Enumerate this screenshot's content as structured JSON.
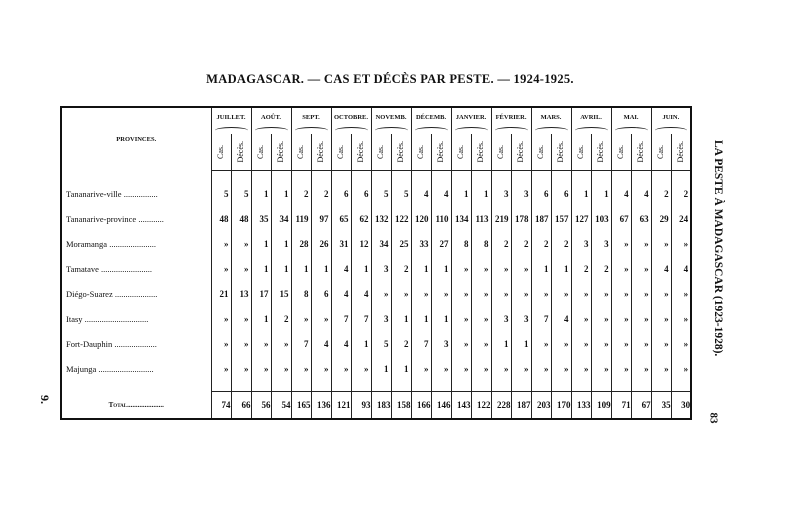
{
  "title": "MADAGASCAR. — CAS ET DÉCÈS PAR PESTE. — 1924-1925.",
  "running_head": "LA PESTE À MADAGASCAR (1923-1928).",
  "page_number": "83",
  "folio_mark": "9.",
  "table": {
    "province_header": "PROVINCES.",
    "months": [
      "JUILLET.",
      "AOÛT.",
      "SEPT.",
      "OCTOBRE.",
      "NOVEMB.",
      "DÉCEMB.",
      "JANVIER.",
      "FÉVRIER.",
      "MARS.",
      "AVRIL.",
      "MAI.",
      "JUIN."
    ],
    "sub_headers": [
      "Cas.",
      "Décès."
    ],
    "rows": [
      {
        "province": "Tananarive-ville ................",
        "values": [
          "5",
          "5",
          "1",
          "1",
          "2",
          "2",
          "6",
          "6",
          "5",
          "5",
          "4",
          "4",
          "1",
          "1",
          "3",
          "3",
          "6",
          "6",
          "1",
          "1",
          "4",
          "4",
          "2",
          "2"
        ]
      },
      {
        "province": "Tananarive-province ............",
        "values": [
          "48",
          "48",
          "35",
          "34",
          "119",
          "97",
          "65",
          "62",
          "132",
          "122",
          "120",
          "110",
          "134",
          "113",
          "219",
          "178",
          "187",
          "157",
          "127",
          "103",
          "67",
          "63",
          "29",
          "24"
        ]
      },
      {
        "province": "Moramanga ......................",
        "values": [
          "»",
          "»",
          "1",
          "1",
          "28",
          "26",
          "31",
          "12",
          "34",
          "25",
          "33",
          "27",
          "8",
          "8",
          "2",
          "2",
          "2",
          "2",
          "3",
          "3",
          "»",
          "»",
          "»",
          "»"
        ]
      },
      {
        "province": "Tamatave ........................",
        "values": [
          "»",
          "»",
          "1",
          "1",
          "1",
          "1",
          "4",
          "1",
          "3",
          "2",
          "1",
          "1",
          "»",
          "»",
          "»",
          "»",
          "1",
          "1",
          "2",
          "2",
          "»",
          "»",
          "4",
          "4"
        ]
      },
      {
        "province": "Diégo-Suarez ....................",
        "values": [
          "21",
          "13",
          "17",
          "15",
          "8",
          "6",
          "4",
          "4",
          "»",
          "»",
          "»",
          "»",
          "»",
          "»",
          "»",
          "»",
          "»",
          "»",
          "»",
          "»",
          "»",
          "»",
          "»",
          "»"
        ]
      },
      {
        "province": "Itasy ..............................",
        "values": [
          "»",
          "»",
          "1",
          "2",
          "»",
          "»",
          "7",
          "7",
          "3",
          "1",
          "1",
          "1",
          "»",
          "»",
          "3",
          "3",
          "7",
          "4",
          "»",
          "»",
          "»",
          "»",
          "»",
          "»"
        ]
      },
      {
        "province": "Fort-Dauphin ....................",
        "values": [
          "»",
          "»",
          "»",
          "»",
          "7",
          "4",
          "4",
          "1",
          "5",
          "2",
          "7",
          "3",
          "»",
          "»",
          "1",
          "1",
          "»",
          "»",
          "»",
          "»",
          "»",
          "»",
          "»",
          "»"
        ]
      },
      {
        "province": "Majunga ..........................",
        "values": [
          "»",
          "»",
          "»",
          "»",
          "»",
          "»",
          "»",
          "»",
          "1",
          "1",
          "»",
          "»",
          "»",
          "»",
          "»",
          "»",
          "»",
          "»",
          "»",
          "»",
          "»",
          "»",
          "»",
          "»"
        ]
      }
    ],
    "total": {
      "label": "Total.....................",
      "values": [
        "74",
        "66",
        "56",
        "54",
        "165",
        "136",
        "121",
        "93",
        "183",
        "158",
        "166",
        "146",
        "143",
        "122",
        "228",
        "187",
        "203",
        "170",
        "133",
        "109",
        "71",
        "67",
        "35",
        "30"
      ]
    }
  }
}
